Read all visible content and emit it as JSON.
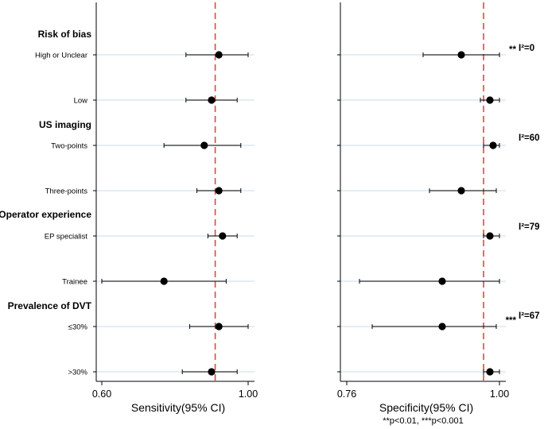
{
  "chart_data": {
    "type": "forest",
    "groups": [
      {
        "title": "Risk of bias",
        "rows": [
          "High or Unclear",
          "Low"
        ],
        "heterogeneity": "I²=0",
        "significance": "**"
      },
      {
        "title": "US imaging",
        "rows": [
          "Two-points",
          "Three-points"
        ],
        "heterogeneity": "I²=60",
        "significance": ""
      },
      {
        "title": "Operator experience",
        "rows": [
          "EP specialist",
          "Trainee"
        ],
        "heterogeneity": "I²=79",
        "significance": ""
      },
      {
        "title": "Prevalence of DVT",
        "rows": [
          "≤30%",
          ">30%"
        ],
        "heterogeneity": "I²=67",
        "significance": "***"
      }
    ],
    "panels": [
      {
        "name": "sensitivity",
        "xlabel": "Sensitivity(95% CI)",
        "xlim": [
          0.58,
          1.02
        ],
        "ticks": [
          "0.60",
          "1.00"
        ],
        "tick_values": [
          0.6,
          1.0
        ],
        "reference": 0.91,
        "estimates": [
          {
            "row": "High or Unclear",
            "est": 0.92,
            "lo": 0.83,
            "hi": 1.0
          },
          {
            "row": "Low",
            "est": 0.9,
            "lo": 0.83,
            "hi": 0.97
          },
          {
            "row": "Two-points",
            "est": 0.88,
            "lo": 0.77,
            "hi": 0.98
          },
          {
            "row": "Three-points",
            "est": 0.92,
            "lo": 0.86,
            "hi": 0.98
          },
          {
            "row": "EP specialist",
            "est": 0.93,
            "lo": 0.89,
            "hi": 0.97
          },
          {
            "row": "Trainee",
            "est": 0.77,
            "lo": 0.6,
            "hi": 0.94
          },
          {
            "row": "≤30%",
            "est": 0.92,
            "lo": 0.84,
            "hi": 1.0
          },
          {
            "row": ">30%",
            "est": 0.9,
            "lo": 0.82,
            "hi": 0.97
          }
        ]
      },
      {
        "name": "specificity",
        "xlabel": "Specificity(95% CI)",
        "xlim": [
          0.755,
          1.005
        ],
        "ticks": [
          "0.76",
          "1.00"
        ],
        "tick_values": [
          0.76,
          1.0
        ],
        "reference": 0.975,
        "estimates": [
          {
            "row": "High or Unclear",
            "est": 0.94,
            "lo": 0.88,
            "hi": 1.0
          },
          {
            "row": "Low",
            "est": 0.985,
            "lo": 0.97,
            "hi": 1.0
          },
          {
            "row": "Two-points",
            "est": 0.99,
            "lo": 0.975,
            "hi": 1.0
          },
          {
            "row": "Three-points",
            "est": 0.94,
            "lo": 0.89,
            "hi": 0.995
          },
          {
            "row": "EP specialist",
            "est": 0.985,
            "lo": 0.975,
            "hi": 1.0
          },
          {
            "row": "Trainee",
            "est": 0.91,
            "lo": 0.78,
            "hi": 1.0
          },
          {
            "row": "≤30%",
            "est": 0.91,
            "lo": 0.8,
            "hi": 0.995
          },
          {
            "row": ">30%",
            "est": 0.985,
            "lo": 0.975,
            "hi": 1.0
          }
        ]
      }
    ],
    "footnote": "**p<0.01, ***p<0.001"
  },
  "colors": {
    "reference_line": "#e8453c",
    "row_guide": "#dbe7f0",
    "marker": "#000000",
    "axis": "#000000"
  }
}
